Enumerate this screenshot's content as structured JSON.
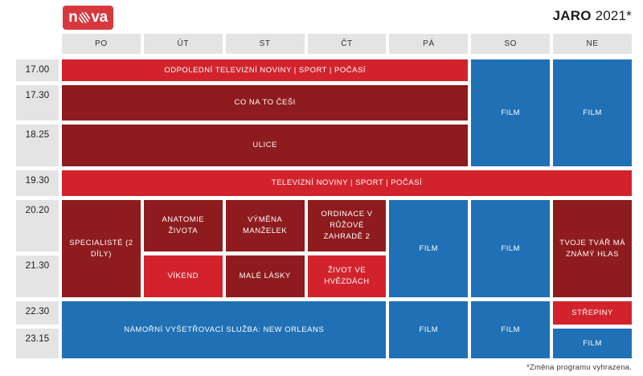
{
  "header": {
    "logo": {
      "left": "n",
      "right": "va"
    },
    "season": {
      "bold": "JARO",
      "rest": " 2021*"
    }
  },
  "days": [
    "PO",
    "ÚT",
    "ST",
    "ČT",
    "PÁ",
    "SO",
    "NE"
  ],
  "times": [
    "17.00",
    "17.30",
    "18.25",
    "19.30",
    "20.20",
    "21.30",
    "22.30",
    "23.15"
  ],
  "programs": [
    {
      "label": "ODPOLEDNÍ TELEVIZNÍ NOVINY | SPORT | POČASÍ",
      "style": "bright",
      "day_start": 0,
      "day_span": 5,
      "time_start": 0,
      "time_span": 1
    },
    {
      "label": "CO NA TO ČEŠI",
      "style": "dark",
      "day_start": 0,
      "day_span": 5,
      "time_start": 1,
      "time_span": 1
    },
    {
      "label": "ULICE",
      "style": "dark",
      "day_start": 0,
      "day_span": 5,
      "time_start": 2,
      "time_span": 1
    },
    {
      "label": "FILM",
      "style": "blue",
      "day_start": 5,
      "day_span": 1,
      "time_start": 0,
      "time_span": 3
    },
    {
      "label": "FILM",
      "style": "blue",
      "day_start": 6,
      "day_span": 1,
      "time_start": 0,
      "time_span": 3
    },
    {
      "label": "TELEVIZNÍ NOVINY | SPORT | POČASÍ",
      "style": "bright",
      "day_start": 0,
      "day_span": 7,
      "time_start": 3,
      "time_span": 1
    },
    {
      "label": "SPECIALISTÉ (2 DÍLY)",
      "style": "dark",
      "day_start": 0,
      "day_span": 1,
      "time_start": 4,
      "time_span": 2
    },
    {
      "label": "ANATOMIE ŽIVOTA",
      "style": "dark",
      "day_start": 1,
      "day_span": 1,
      "time_start": 4,
      "time_span": 1
    },
    {
      "label": "VÝMĚNA MANŽELEK",
      "style": "dark",
      "day_start": 2,
      "day_span": 1,
      "time_start": 4,
      "time_span": 1
    },
    {
      "label": "ORDINACE V RŮŽOVÉ ZAHRADĚ 2",
      "style": "dark",
      "day_start": 3,
      "day_span": 1,
      "time_start": 4,
      "time_span": 1
    },
    {
      "label": "FILM",
      "style": "blue",
      "day_start": 4,
      "day_span": 1,
      "time_start": 4,
      "time_span": 2
    },
    {
      "label": "FILM",
      "style": "blue",
      "day_start": 5,
      "day_span": 1,
      "time_start": 4,
      "time_span": 2
    },
    {
      "label": "TVOJE TVÁŘ MÁ ZNÁMÝ HLAS",
      "style": "dark",
      "day_start": 6,
      "day_span": 1,
      "time_start": 4,
      "time_span": 2
    },
    {
      "label": "VÍKEND",
      "style": "bright",
      "day_start": 1,
      "day_span": 1,
      "time_start": 5,
      "time_span": 1
    },
    {
      "label": "MALÉ LÁSKY",
      "style": "dark",
      "day_start": 2,
      "day_span": 1,
      "time_start": 5,
      "time_span": 1
    },
    {
      "label": "ŽIVOT VE HVĚZDÁCH",
      "style": "bright",
      "day_start": 3,
      "day_span": 1,
      "time_start": 5,
      "time_span": 1
    },
    {
      "label": "NÁMOŘNÍ VYŠETŘOVACÍ SLUŽBA: NEW ORLEANS",
      "style": "blue",
      "day_start": 0,
      "day_span": 4,
      "time_start": 6,
      "time_span": 2
    },
    {
      "label": "FILM",
      "style": "blue",
      "day_start": 4,
      "day_span": 1,
      "time_start": 6,
      "time_span": 2
    },
    {
      "label": "FILM",
      "style": "blue",
      "day_start": 5,
      "day_span": 1,
      "time_start": 6,
      "time_span": 2
    },
    {
      "label": "STŘEPINY",
      "style": "bright",
      "day_start": 6,
      "day_span": 1,
      "time_start": 6,
      "time_span": 1
    },
    {
      "label": "FILM",
      "style": "blue",
      "day_start": 6,
      "day_span": 1,
      "time_start": 7,
      "time_span": 1
    }
  ],
  "footer": {
    "note": "*Změna programu vyhrazena."
  },
  "colors": {
    "bright_red": "#d2232c",
    "dark_red": "#8e1b1d",
    "blue": "#1f70b5",
    "cell_gray": "#e4e4e4",
    "logo_red": "#d6383e",
    "text_dark": "#1c1c1e"
  }
}
